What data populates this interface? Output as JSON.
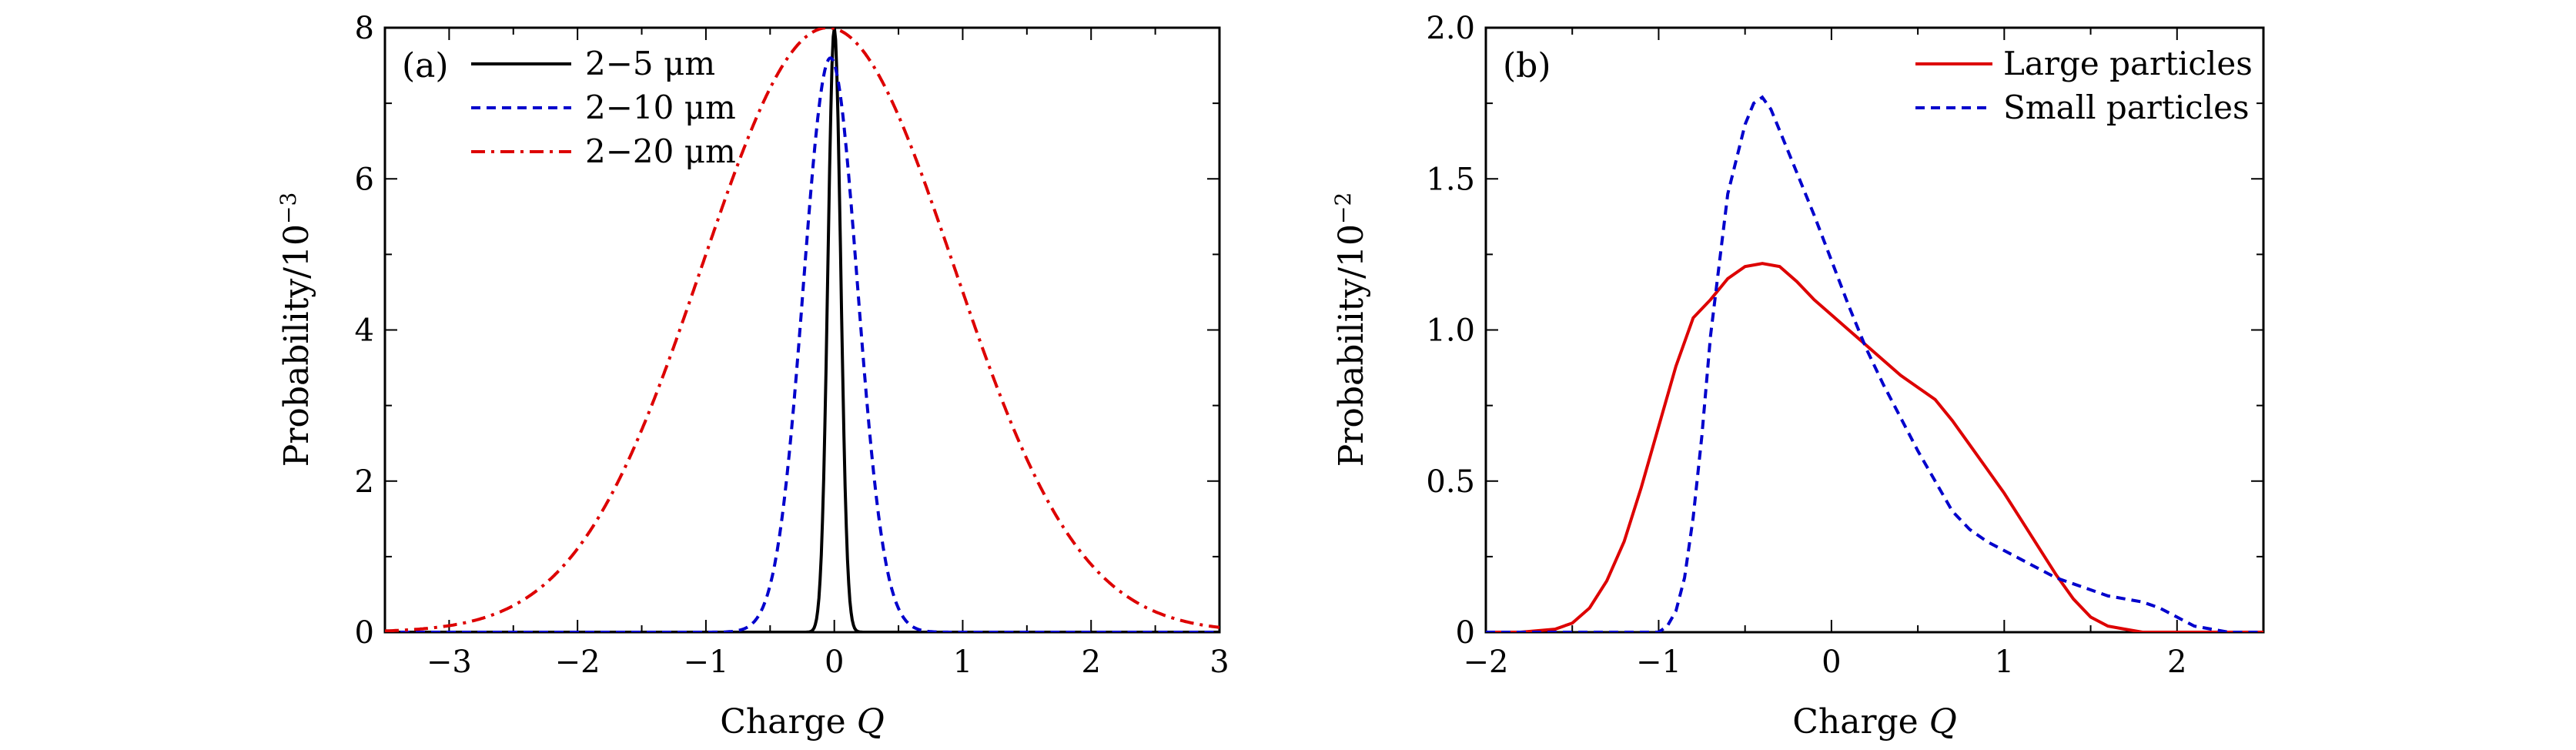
{
  "chart_data": [
    {
      "panel": "(a)",
      "type": "line",
      "xlabel_prefix": "Charge ",
      "xlabel_var": "Q",
      "ylabel_base": "Probability/10",
      "ylabel_exp": "−3",
      "xlim": [
        -3.5,
        3
      ],
      "ylim": [
        0,
        8
      ],
      "xticks": [
        -3,
        -2,
        -1,
        0,
        1,
        2,
        3
      ],
      "xtick_labels": [
        "−3",
        "−2",
        "−1",
        "0",
        "1",
        "2",
        "3"
      ],
      "yticks": [
        0,
        2,
        4,
        6,
        8
      ],
      "ytick_labels": [
        "0",
        "2",
        "4",
        "6",
        "8"
      ],
      "legend_position": "top-left",
      "series": [
        {
          "name": "2−5 μm",
          "color": "#000000",
          "style": "solid",
          "model": "gaussian",
          "mu": 0.0,
          "sigma": 0.05,
          "peak": 8.0
        },
        {
          "name": "2−10 μm",
          "color": "#0000cc",
          "style": "dashed",
          "model": "gaussian",
          "mu": -0.03,
          "sigma": 0.21,
          "peak": 7.6
        },
        {
          "name": "2−20 μm",
          "color": "#dd0000",
          "style": "dashdot",
          "model": "gaussian",
          "mu": -0.05,
          "sigma": 0.98,
          "peak": 8.0
        }
      ]
    },
    {
      "panel": "(b)",
      "type": "line",
      "xlabel_prefix": "Charge ",
      "xlabel_var": "Q",
      "ylabel_base": "Probability/10",
      "ylabel_exp": "−2",
      "xlim": [
        -2,
        2.5
      ],
      "ylim": [
        0,
        2.0
      ],
      "xticks": [
        -2,
        -1,
        0,
        1,
        2
      ],
      "xtick_labels": [
        "−2",
        "−1",
        "0",
        "1",
        "2"
      ],
      "yticks": [
        0,
        0.5,
        1.0,
        1.5,
        2.0
      ],
      "ytick_labels": [
        "0",
        "0.5",
        "1.0",
        "1.5",
        "2.0"
      ],
      "legend_position": "top-right",
      "series": [
        {
          "name": "Large particles",
          "color": "#dd0000",
          "style": "solid",
          "x": [
            -2.0,
            -1.8,
            -1.6,
            -1.5,
            -1.4,
            -1.3,
            -1.2,
            -1.1,
            -1.0,
            -0.9,
            -0.8,
            -0.7,
            -0.6,
            -0.5,
            -0.4,
            -0.3,
            -0.2,
            -0.1,
            0.0,
            0.1,
            0.2,
            0.3,
            0.4,
            0.5,
            0.6,
            0.7,
            0.8,
            0.9,
            1.0,
            1.1,
            1.2,
            1.3,
            1.4,
            1.5,
            1.6,
            1.7,
            1.8,
            1.9,
            2.0,
            2.2,
            2.5
          ],
          "y": [
            0.0,
            0.0,
            0.01,
            0.03,
            0.08,
            0.17,
            0.3,
            0.48,
            0.68,
            0.88,
            1.04,
            1.1,
            1.17,
            1.21,
            1.22,
            1.21,
            1.16,
            1.1,
            1.05,
            1.0,
            0.95,
            0.9,
            0.85,
            0.81,
            0.77,
            0.7,
            0.62,
            0.54,
            0.46,
            0.37,
            0.28,
            0.19,
            0.11,
            0.05,
            0.02,
            0.01,
            0.0,
            0.0,
            0.0,
            0.0,
            0.0
          ]
        },
        {
          "name": "Small particles",
          "color": "#0000cc",
          "style": "dashed",
          "x": [
            -2.0,
            -1.5,
            -1.2,
            -1.1,
            -1.0,
            -0.95,
            -0.9,
            -0.85,
            -0.8,
            -0.75,
            -0.7,
            -0.6,
            -0.5,
            -0.45,
            -0.4,
            -0.35,
            -0.3,
            -0.2,
            -0.1,
            0.0,
            0.1,
            0.2,
            0.3,
            0.4,
            0.5,
            0.6,
            0.7,
            0.8,
            0.9,
            1.0,
            1.1,
            1.2,
            1.3,
            1.4,
            1.5,
            1.6,
            1.7,
            1.8,
            1.9,
            2.0,
            2.1,
            2.2,
            2.3,
            2.5
          ],
          "y": [
            0.0,
            0.0,
            0.0,
            0.0,
            0.0,
            0.02,
            0.07,
            0.18,
            0.38,
            0.65,
            0.98,
            1.45,
            1.68,
            1.75,
            1.77,
            1.73,
            1.66,
            1.52,
            1.38,
            1.23,
            1.08,
            0.94,
            0.82,
            0.71,
            0.6,
            0.5,
            0.4,
            0.34,
            0.3,
            0.27,
            0.24,
            0.21,
            0.18,
            0.16,
            0.14,
            0.12,
            0.11,
            0.1,
            0.08,
            0.05,
            0.02,
            0.01,
            0.0,
            0.0
          ]
        }
      ]
    }
  ]
}
